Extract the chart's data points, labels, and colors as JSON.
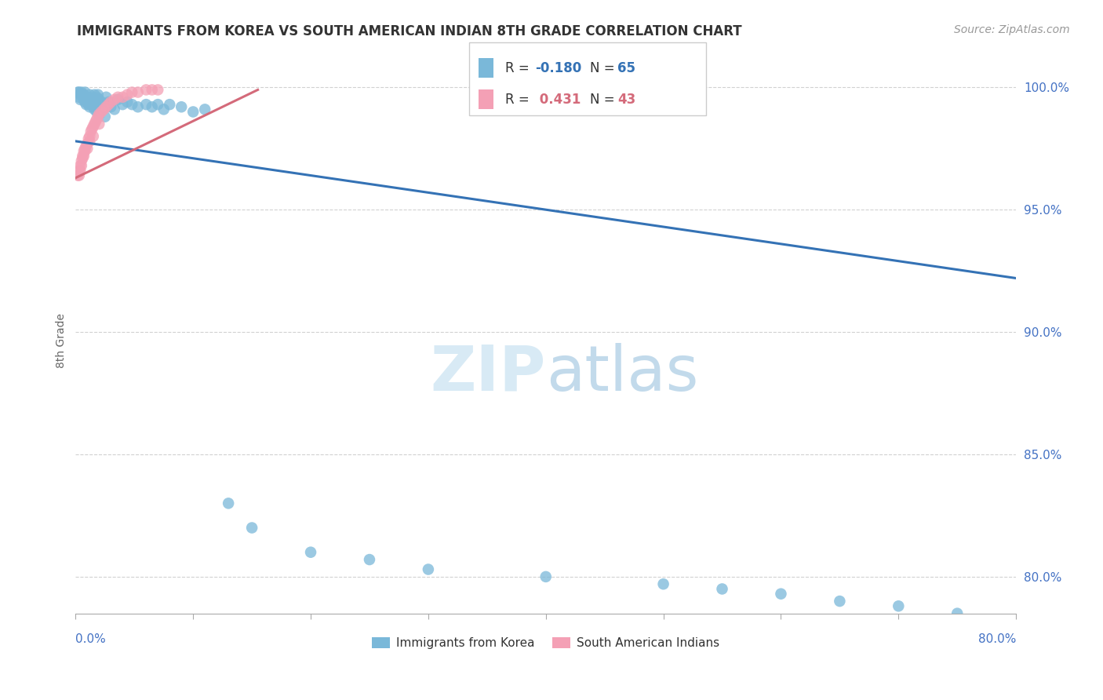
{
  "title": "IMMIGRANTS FROM KOREA VS SOUTH AMERICAN INDIAN 8TH GRADE CORRELATION CHART",
  "source_text": "Source: ZipAtlas.com",
  "ylabel": "8th Grade",
  "ytick_labels": [
    "80.0%",
    "85.0%",
    "90.0%",
    "95.0%",
    "100.0%"
  ],
  "ytick_values": [
    0.8,
    0.85,
    0.9,
    0.95,
    1.0
  ],
  "xlim": [
    0.0,
    0.8
  ],
  "ylim": [
    0.785,
    1.008
  ],
  "legend_label_blue": "Immigrants from Korea",
  "legend_label_pink": "South American Indians",
  "watermark_zip": "ZIP",
  "watermark_atlas": "atlas",
  "blue_color": "#7ab8d9",
  "pink_color": "#f4a0b5",
  "trendline_blue_color": "#3472b5",
  "trendline_pink_color": "#d46a7a",
  "blue_trendline_x0": 0.0,
  "blue_trendline_y0": 0.978,
  "blue_trendline_x1": 0.8,
  "blue_trendline_y1": 0.922,
  "pink_trendline_x0": 0.0,
  "pink_trendline_y0": 0.963,
  "pink_trendline_x1": 0.155,
  "pink_trendline_y1": 0.999,
  "korea_points": [
    [
      0.002,
      0.998
    ],
    [
      0.003,
      0.998
    ],
    [
      0.004,
      0.997
    ],
    [
      0.005,
      0.998
    ],
    [
      0.006,
      0.997
    ],
    [
      0.007,
      0.997
    ],
    [
      0.008,
      0.998
    ],
    [
      0.009,
      0.996
    ],
    [
      0.01,
      0.996
    ],
    [
      0.011,
      0.995
    ],
    [
      0.012,
      0.997
    ],
    [
      0.013,
      0.994
    ],
    [
      0.014,
      0.996
    ],
    [
      0.015,
      0.995
    ],
    [
      0.016,
      0.997
    ],
    [
      0.017,
      0.994
    ],
    [
      0.018,
      0.996
    ],
    [
      0.019,
      0.997
    ],
    [
      0.02,
      0.995
    ],
    [
      0.022,
      0.994
    ],
    [
      0.024,
      0.993
    ],
    [
      0.026,
      0.996
    ],
    [
      0.028,
      0.994
    ],
    [
      0.03,
      0.992
    ],
    [
      0.033,
      0.991
    ],
    [
      0.036,
      0.995
    ],
    [
      0.04,
      0.993
    ],
    [
      0.044,
      0.994
    ],
    [
      0.048,
      0.993
    ],
    [
      0.053,
      0.992
    ],
    [
      0.06,
      0.993
    ],
    [
      0.065,
      0.992
    ],
    [
      0.07,
      0.993
    ],
    [
      0.075,
      0.991
    ],
    [
      0.08,
      0.993
    ],
    [
      0.09,
      0.992
    ],
    [
      0.1,
      0.99
    ],
    [
      0.11,
      0.991
    ],
    [
      0.007,
      0.995
    ],
    [
      0.008,
      0.994
    ],
    [
      0.009,
      0.993
    ],
    [
      0.01,
      0.994
    ],
    [
      0.011,
      0.993
    ],
    [
      0.012,
      0.992
    ],
    [
      0.013,
      0.994
    ],
    [
      0.014,
      0.993
    ],
    [
      0.015,
      0.992
    ],
    [
      0.016,
      0.991
    ],
    [
      0.018,
      0.99
    ],
    [
      0.02,
      0.989
    ],
    [
      0.025,
      0.988
    ],
    [
      0.003,
      0.996
    ],
    [
      0.004,
      0.995
    ],
    [
      0.13,
      0.83
    ],
    [
      0.15,
      0.82
    ],
    [
      0.2,
      0.81
    ],
    [
      0.25,
      0.807
    ],
    [
      0.3,
      0.803
    ],
    [
      0.4,
      0.8
    ],
    [
      0.5,
      0.797
    ],
    [
      0.55,
      0.795
    ],
    [
      0.6,
      0.793
    ],
    [
      0.65,
      0.79
    ],
    [
      0.7,
      0.788
    ],
    [
      0.75,
      0.785
    ]
  ],
  "sai_points": [
    [
      0.002,
      0.964
    ],
    [
      0.003,
      0.966
    ],
    [
      0.004,
      0.968
    ],
    [
      0.005,
      0.97
    ],
    [
      0.006,
      0.972
    ],
    [
      0.007,
      0.974
    ],
    [
      0.008,
      0.975
    ],
    [
      0.009,
      0.976
    ],
    [
      0.01,
      0.977
    ],
    [
      0.011,
      0.979
    ],
    [
      0.012,
      0.98
    ],
    [
      0.013,
      0.982
    ],
    [
      0.014,
      0.983
    ],
    [
      0.015,
      0.984
    ],
    [
      0.016,
      0.985
    ],
    [
      0.017,
      0.986
    ],
    [
      0.018,
      0.987
    ],
    [
      0.019,
      0.988
    ],
    [
      0.02,
      0.989
    ],
    [
      0.022,
      0.99
    ],
    [
      0.024,
      0.991
    ],
    [
      0.026,
      0.992
    ],
    [
      0.028,
      0.993
    ],
    [
      0.03,
      0.994
    ],
    [
      0.033,
      0.995
    ],
    [
      0.036,
      0.996
    ],
    [
      0.04,
      0.996
    ],
    [
      0.044,
      0.997
    ],
    [
      0.048,
      0.998
    ],
    [
      0.053,
      0.998
    ],
    [
      0.06,
      0.999
    ],
    [
      0.065,
      0.999
    ],
    [
      0.07,
      0.999
    ],
    [
      0.003,
      0.964
    ],
    [
      0.004,
      0.966
    ],
    [
      0.005,
      0.968
    ],
    [
      0.006,
      0.971
    ],
    [
      0.007,
      0.972
    ],
    [
      0.008,
      0.974
    ],
    [
      0.01,
      0.975
    ],
    [
      0.012,
      0.978
    ],
    [
      0.015,
      0.98
    ],
    [
      0.02,
      0.985
    ]
  ]
}
